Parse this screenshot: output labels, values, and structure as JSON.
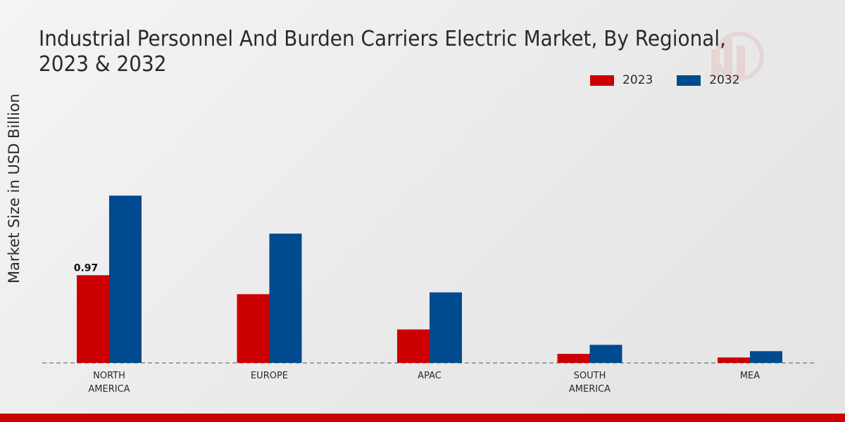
{
  "chart_data": {
    "type": "bar",
    "title": "Industrial Personnel And Burden Carriers Electric Market, By Regional, 2023 & 2032",
    "xlabel": "",
    "ylabel": "Market Size in USD Billion",
    "categories": [
      "NORTH AMERICA",
      "EUROPE",
      "APAC",
      "SOUTH AMERICA",
      "MEA"
    ],
    "category_lines": [
      [
        "NORTH",
        "AMERICA"
      ],
      [
        "EUROPE"
      ],
      [
        "APAC"
      ],
      [
        "SOUTH",
        "AMERICA"
      ],
      [
        "MEA"
      ]
    ],
    "series": [
      {
        "name": "2023",
        "color": "#cc0000",
        "values": [
          0.97,
          0.76,
          0.37,
          0.1,
          0.06
        ]
      },
      {
        "name": "2032",
        "color": "#004a8f",
        "values": [
          1.85,
          1.43,
          0.78,
          0.2,
          0.13
        ]
      }
    ],
    "data_labels": [
      {
        "series": 0,
        "index": 0,
        "text": "0.97"
      }
    ],
    "ylim": [
      0,
      3.5
    ],
    "legend_position": "top-right"
  }
}
